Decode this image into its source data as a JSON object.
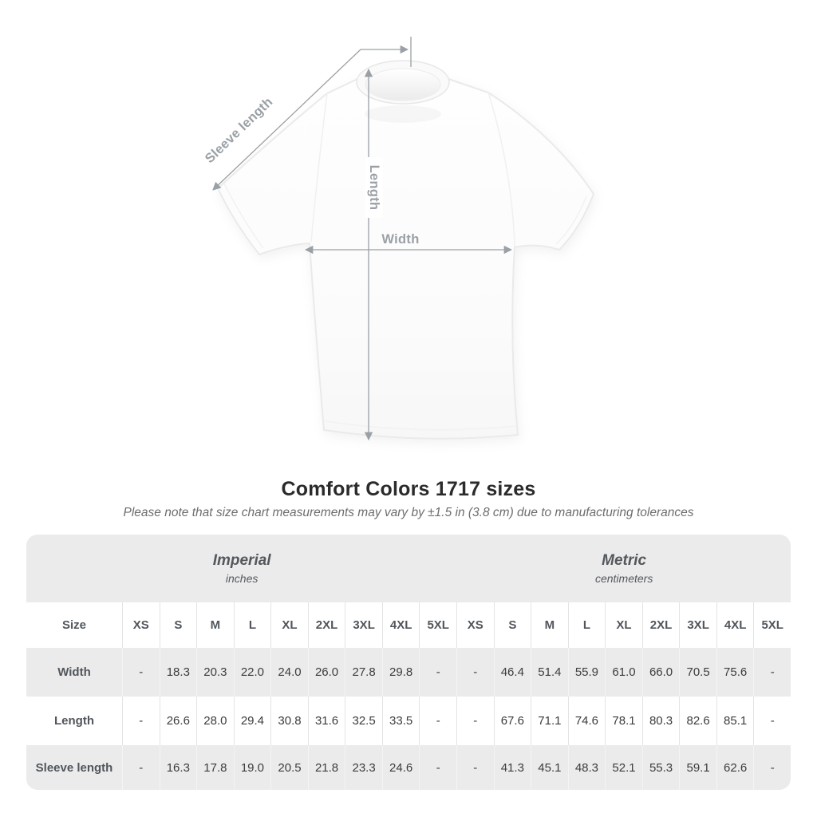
{
  "title": "Comfort Colors 1717 sizes",
  "note": "Please note that size chart measurements may vary by ±1.5 in (3.8 cm) due to manufacturing tolerances",
  "diagram": {
    "labels": {
      "sleeve_length": "Sleeve length",
      "length": "Length",
      "width": "Width"
    },
    "arrow_color": "#9aa0a5"
  },
  "chart_data": {
    "type": "table",
    "title": "Comfort Colors 1717 sizes",
    "note": "Please note that size chart measurements may vary by ±1.5 in (3.8 cm) due to manufacturing tolerances",
    "unit_groups": [
      {
        "label": "Imperial",
        "sublabel": "inches"
      },
      {
        "label": "Metric",
        "sublabel": "centimeters"
      }
    ],
    "size_header": "Size",
    "columns": [
      "XS",
      "S",
      "M",
      "L",
      "XL",
      "2XL",
      "3XL",
      "4XL",
      "5XL",
      "XS",
      "S",
      "M",
      "L",
      "XL",
      "2XL",
      "3XL",
      "4XL",
      "5XL"
    ],
    "rows": [
      {
        "label": "Width",
        "values": [
          "-",
          "18.3",
          "20.3",
          "22.0",
          "24.0",
          "26.0",
          "27.8",
          "29.8",
          "-",
          "-",
          "46.4",
          "51.4",
          "55.9",
          "61.0",
          "66.0",
          "70.5",
          "75.6",
          "-"
        ]
      },
      {
        "label": "Length",
        "values": [
          "-",
          "26.6",
          "28.0",
          "29.4",
          "30.8",
          "31.6",
          "32.5",
          "33.5",
          "-",
          "-",
          "67.6",
          "71.1",
          "74.6",
          "78.1",
          "80.3",
          "82.6",
          "85.1",
          "-"
        ]
      },
      {
        "label": "Sleeve length",
        "values": [
          "-",
          "16.3",
          "17.8",
          "19.0",
          "20.5",
          "21.8",
          "23.3",
          "24.6",
          "-",
          "-",
          "41.3",
          "45.1",
          "48.3",
          "52.1",
          "55.3",
          "59.1",
          "62.6",
          "-"
        ]
      }
    ],
    "colors": {
      "band": "#ebebeb",
      "row_alt": "#ebebeb",
      "row_white": "#ffffff"
    }
  }
}
